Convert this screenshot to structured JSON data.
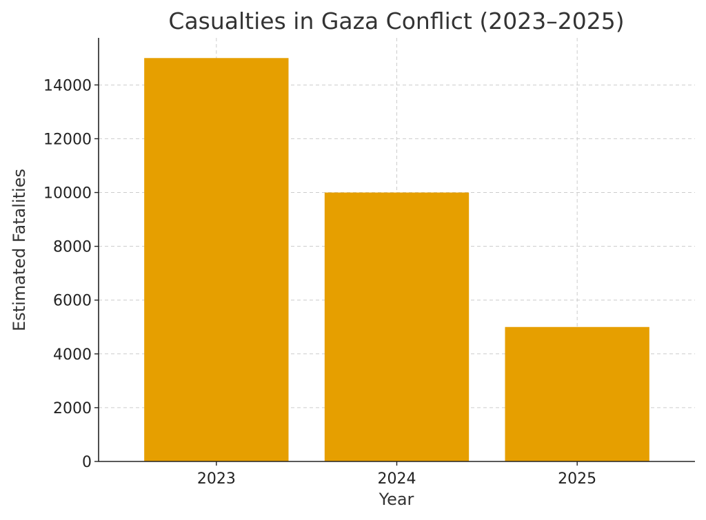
{
  "chart_data": {
    "type": "bar",
    "title": "Casualties in Gaza Conflict (2023–2025)",
    "xlabel": "Year",
    "ylabel": "Estimated Fatalities",
    "categories": [
      "2023",
      "2024",
      "2025"
    ],
    "values": [
      15000,
      10000,
      5000
    ],
    "ylim": [
      0,
      15750
    ],
    "yticks": [
      0,
      2000,
      4000,
      6000,
      8000,
      10000,
      12000,
      14000
    ],
    "grid": true,
    "bar_color": "#E69F00"
  }
}
